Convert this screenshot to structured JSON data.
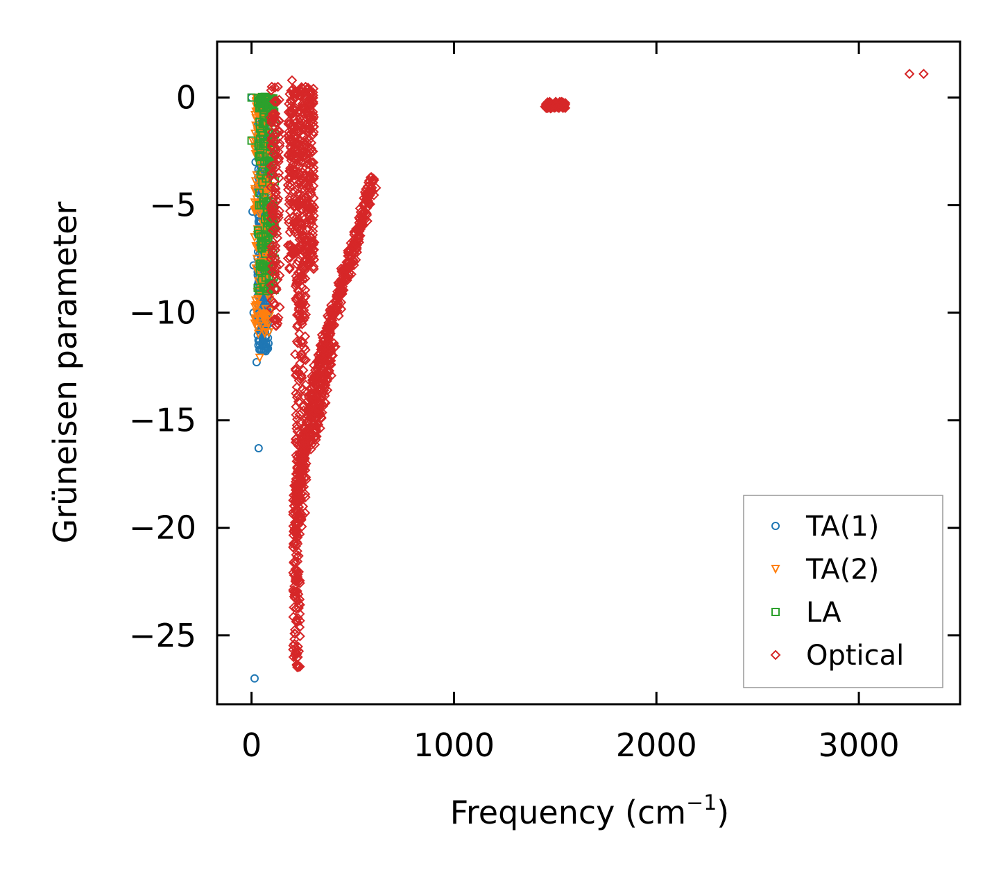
{
  "chart_data": {
    "type": "scatter",
    "title": "",
    "xlabel": "Frequency (cm",
    "xlabel_sup": "−1",
    "xlabel_close": ")",
    "ylabel": "Grüneisen parameter",
    "xlim": [
      -170,
      3500
    ],
    "ylim": [
      -28.2,
      2.6
    ],
    "xticks": [
      0,
      1000,
      2000,
      3000
    ],
    "xtick_labels": [
      "0",
      "1000",
      "2000",
      "3000"
    ],
    "yticks": [
      0,
      -5,
      -10,
      -15,
      -20,
      -25
    ],
    "ytick_labels": [
      "0",
      "−5",
      "−10",
      "−15",
      "−20",
      "−25"
    ],
    "legend": {
      "position": "lower-right",
      "entries": [
        "TA(1)",
        "TA(2)",
        "LA",
        "Optical"
      ]
    },
    "series": [
      {
        "name": "TA(1)",
        "marker": "circle",
        "color": "#1f77b4",
        "clusters": [
          {
            "x": [
              30,
              85
            ],
            "y": [
              -11.8,
              -0.3
            ],
            "n": 420
          }
        ],
        "outliers": [
          [
            15,
            -27
          ],
          [
            35,
            -16.3
          ],
          [
            25,
            -12.3
          ],
          [
            10,
            -10
          ],
          [
            10,
            -7.8
          ],
          [
            5,
            -5.3
          ],
          [
            0,
            0
          ],
          [
            20,
            -3
          ]
        ]
      },
      {
        "name": "TA(2)",
        "marker": "triangle-down",
        "color": "#ff7f0e",
        "clusters": [
          {
            "x": [
              15,
              95
            ],
            "y": [
              -11,
              0
            ],
            "n": 200
          },
          {
            "x": [
              20,
              110
            ],
            "y": [
              -0.8,
              0
            ],
            "n": 60
          }
        ],
        "outliers": [
          [
            40,
            -12.1
          ],
          [
            15,
            -6.5
          ],
          [
            5,
            -2
          ]
        ]
      },
      {
        "name": "LA",
        "marker": "square",
        "color": "#2ca02c",
        "clusters": [
          {
            "x": [
              30,
              115
            ],
            "y": [
              -9,
              0
            ],
            "n": 140
          },
          {
            "x": [
              30,
              110
            ],
            "y": [
              -0.5,
              0.05
            ],
            "n": 40
          }
        ],
        "outliers": [
          [
            0,
            0
          ],
          [
            0,
            -2
          ]
        ]
      },
      {
        "name": "Optical",
        "marker": "diamond",
        "color": "#d62728",
        "clusters": [
          {
            "x": [
              95,
              140
            ],
            "y": [
              -10.8,
              0.5
            ],
            "n": 120
          },
          {
            "x": [
              180,
              310
            ],
            "y": [
              -8,
              0.5
            ],
            "n": 420
          },
          {
            "x": [
              205,
              240
            ],
            "y": [
              -26.5,
              -18
            ],
            "n": 130
          },
          {
            "x": [
              215,
              270
            ],
            "y": [
              -20,
              -8
            ],
            "n": 180
          },
          {
            "x": [
              1450,
              1550
            ],
            "y": [
              -0.5,
              -0.2
            ],
            "n": 70
          }
        ],
        "curves": [
          {
            "x": [
              220,
              330
            ],
            "y": [
              -18.5,
              -12.5
            ],
            "n": 90
          },
          {
            "x": [
              330,
              600
            ],
            "y": [
              -12.5,
              -3.9
            ],
            "n": 150
          },
          {
            "x": [
              300,
              400
            ],
            "y": [
              -16,
              -11.5
            ],
            "n": 60
          }
        ],
        "outliers": [
          [
            3250,
            1.1
          ],
          [
            3320,
            1.1
          ],
          [
            100,
            0.5
          ],
          [
            130,
            0.5
          ],
          [
            200,
            0.8
          ]
        ]
      }
    ]
  }
}
